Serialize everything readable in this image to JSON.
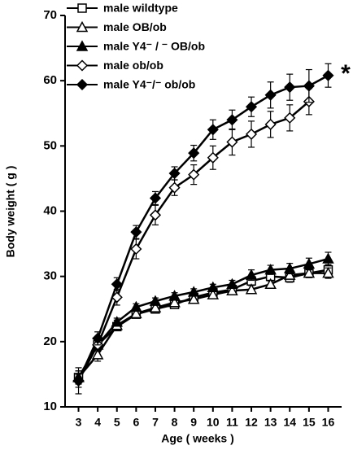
{
  "chart_data": {
    "type": "line",
    "xlabel": "Age ( weeks )",
    "ylabel": "Body weight ( g )",
    "annotation": "*",
    "x": [
      3,
      4,
      5,
      6,
      7,
      8,
      9,
      10,
      11,
      12,
      13,
      14,
      15,
      16
    ],
    "xlim": [
      2.3,
      16.7
    ],
    "xticks": [
      3,
      4,
      5,
      6,
      7,
      8,
      9,
      10,
      11,
      12,
      13,
      14,
      15,
      16
    ],
    "ylim": [
      10,
      70
    ],
    "yticks": [
      10,
      20,
      30,
      40,
      50,
      60,
      70
    ],
    "legend": "upper left",
    "series": [
      {
        "name": "male  wildtype",
        "color": "#000000",
        "marker": "square",
        "marker_fill": "#ffffff",
        "values": [
          14.5,
          19.5,
          22.3,
          24.2,
          25.0,
          25.7,
          26.8,
          27.5,
          28.0,
          29.3,
          30.0,
          29.8,
          30.5,
          31.0
        ],
        "errors": [
          1,
          0.7,
          0.5,
          0.5,
          0.5,
          0.5,
          0.5,
          0.5,
          0.5,
          0.7,
          0.7,
          0.7,
          0.7,
          0.8
        ]
      },
      {
        "name": "male OB/ob",
        "color": "#000000",
        "marker": "triangle",
        "marker_fill": "#ffffff",
        "values": [
          14.5,
          18.0,
          22.5,
          24.3,
          25.2,
          26.0,
          26.5,
          27.2,
          27.8,
          28.0,
          28.8,
          30.2,
          30.5,
          30.5
        ],
        "errors": [
          1,
          1,
          0.8,
          0.6,
          0.5,
          0.5,
          0.5,
          0.5,
          0.5,
          0.6,
          0.6,
          0.5,
          0.6,
          0.8
        ]
      },
      {
        "name": "male Y4⁻ / ⁻ OB/ob",
        "color": "#000000",
        "marker": "triangle",
        "marker_fill": "#000000",
        "values": [
          14.5,
          19.5,
          23.0,
          25.3,
          26.2,
          27.0,
          27.6,
          28.3,
          28.8,
          30.2,
          31.0,
          31.2,
          31.9,
          32.7
        ],
        "errors": [
          1,
          0.8,
          0.6,
          0.5,
          0.5,
          0.5,
          0.5,
          0.5,
          0.6,
          0.8,
          0.7,
          0.8,
          0.9,
          1.0
        ]
      },
      {
        "name": "male ob/ob",
        "color": "#000000",
        "marker": "diamond",
        "marker_fill": "#ffffff",
        "values": [
          14.0,
          19.5,
          26.8,
          34.2,
          39.4,
          43.6,
          45.6,
          48.2,
          50.6,
          51.8,
          53.3,
          54.3,
          56.8,
          null
        ],
        "errors": [
          1,
          1,
          1.2,
          1.5,
          1.5,
          1.2,
          1.5,
          1.8,
          2,
          2,
          2,
          2,
          2,
          null
        ]
      },
      {
        "name": "male Y4⁻/⁻ ob/ob",
        "color": "#000000",
        "marker": "diamond",
        "marker_fill": "#000000",
        "values": [
          14.0,
          20.5,
          28.8,
          36.8,
          42.0,
          45.8,
          48.9,
          52.5,
          54.0,
          56.0,
          57.8,
          59.0,
          59.2,
          60.8
        ],
        "errors": [
          2,
          1,
          1,
          1,
          1,
          1,
          1.2,
          1.5,
          1.5,
          1.5,
          2,
          2,
          2.5,
          1.8
        ]
      }
    ]
  }
}
